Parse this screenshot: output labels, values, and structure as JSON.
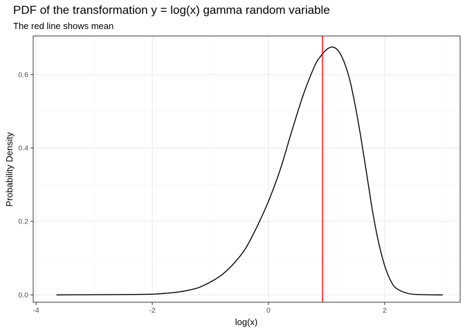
{
  "chart_data": {
    "type": "line",
    "title": "PDF of the transformation y = log(x) gamma random variable",
    "subtitle": "The red line shows mean",
    "xlabel": "log(x)",
    "ylabel": "Probability Density",
    "xlim": [
      -4.05,
      3.3
    ],
    "ylim": [
      -0.02,
      0.705
    ],
    "x_ticks": [
      -4,
      -2,
      0,
      2
    ],
    "x_tick_labels": [
      "-4",
      "-2",
      "0",
      "2"
    ],
    "y_ticks": [
      0.0,
      0.2,
      0.4,
      0.6
    ],
    "y_tick_labels": [
      "0.0",
      "0.2",
      "0.4",
      "0.6"
    ],
    "grid": true,
    "legend": "none",
    "series": [
      {
        "color": "#000000",
        "x": [
          -3.65,
          -3.0,
          -2.5,
          -2.0,
          -1.8,
          -1.6,
          -1.4,
          -1.2,
          -1.0,
          -0.8,
          -0.6,
          -0.4,
          -0.2,
          0.0,
          0.2,
          0.4,
          0.6,
          0.8,
          0.9,
          1.0,
          1.1,
          1.2,
          1.3,
          1.4,
          1.5,
          1.6,
          1.7,
          1.8,
          1.9,
          2.0,
          2.1,
          2.2,
          2.4,
          2.6,
          2.8,
          3.0
        ],
        "y": [
          0.0,
          0.0005,
          0.001,
          0.002,
          0.004,
          0.007,
          0.012,
          0.02,
          0.035,
          0.055,
          0.085,
          0.125,
          0.185,
          0.255,
          0.34,
          0.445,
          0.545,
          0.625,
          0.65,
          0.668,
          0.675,
          0.665,
          0.635,
          0.585,
          0.51,
          0.42,
          0.32,
          0.22,
          0.14,
          0.08,
          0.04,
          0.018,
          0.004,
          0.001,
          0.0002,
          0.0
        ]
      }
    ],
    "vlines": [
      {
        "x": 0.93,
        "color": "#ff0000",
        "label": "mean"
      }
    ]
  }
}
